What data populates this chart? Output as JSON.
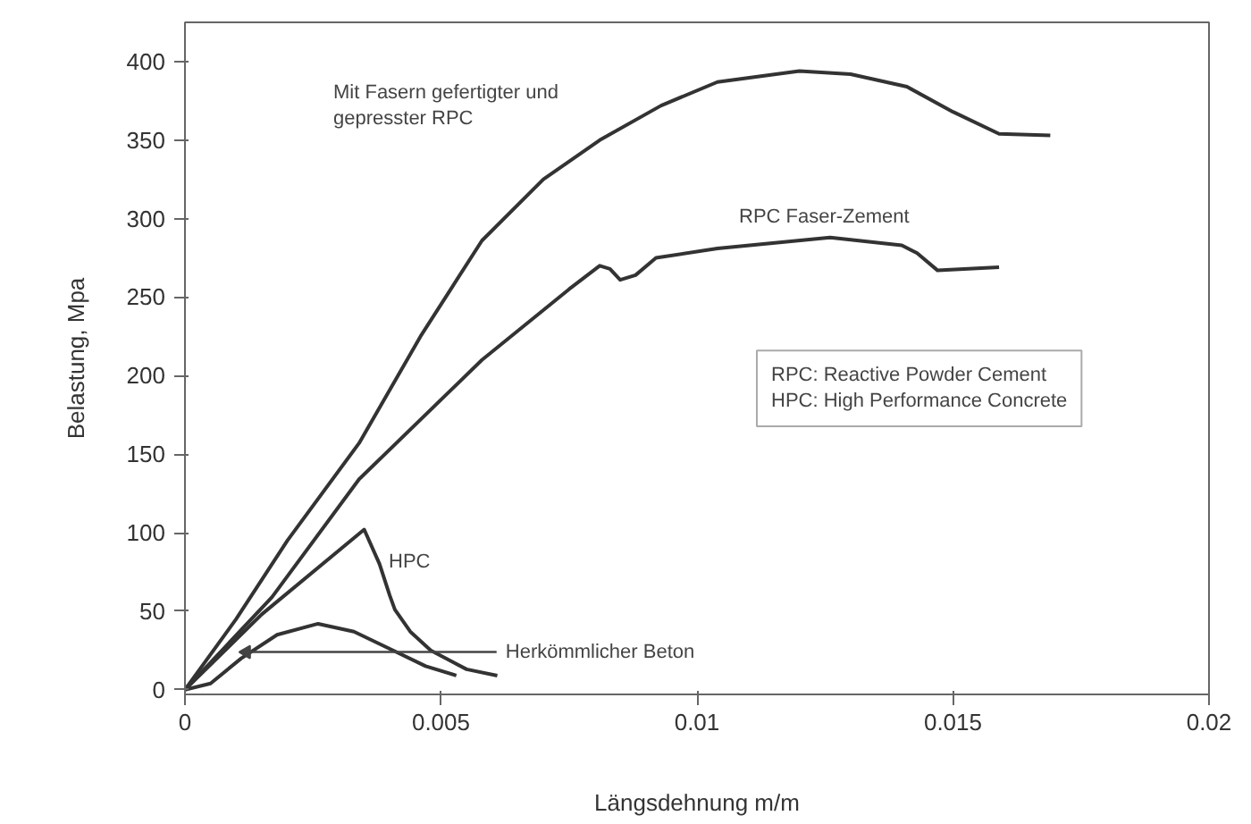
{
  "chart_data": {
    "type": "line",
    "xlabel": "Längsdehnung m/m",
    "ylabel": "Belastung, Mpa",
    "xlim": [
      0,
      0.02
    ],
    "ylim": [
      -3,
      425
    ],
    "xticks": [
      0,
      0.005,
      0.01,
      0.015,
      0.02
    ],
    "yticks": [
      0,
      50,
      100,
      150,
      200,
      250,
      300,
      350,
      400
    ],
    "grid": false,
    "series": [
      {
        "color": "#333333",
        "x": [
          0,
          0.001,
          0.002,
          0.0034,
          0.0046,
          0.0058,
          0.007,
          0.0081,
          0.0093,
          0.0104,
          0.012,
          0.013,
          0.0141,
          0.015,
          0.0159,
          0.0169
        ],
        "values": [
          0,
          45,
          95,
          157,
          225,
          286,
          325,
          350,
          372,
          387,
          394,
          392,
          384,
          368,
          354,
          353
        ]
      },
      {
        "color": "#333333",
        "x": [
          0,
          0.0017,
          0.0034,
          0.0058,
          0.0075,
          0.0081,
          0.0083,
          0.0085,
          0.0088,
          0.0092,
          0.0104,
          0.0126,
          0.014,
          0.0143,
          0.0147,
          0.0159
        ],
        "values": [
          0,
          59,
          134,
          210,
          255,
          270,
          268,
          261,
          264,
          275,
          281,
          288,
          283,
          278,
          267,
          269
        ]
      },
      {
        "color": "#333333",
        "x": [
          0,
          0.0015,
          0.0035,
          0.0038,
          0.004,
          0.0041,
          0.0044,
          0.0048,
          0.0055,
          0.0061
        ],
        "values": [
          0,
          48,
          102,
          80,
          60,
          51,
          37,
          25,
          13,
          9
        ]
      },
      {
        "color": "#333333",
        "x": [
          0,
          0.0005,
          0.0011,
          0.0018,
          0.0026,
          0.0033,
          0.004,
          0.0047,
          0.0053
        ],
        "values": [
          0,
          4,
          20,
          35,
          42,
          37,
          26,
          15,
          9
        ]
      }
    ],
    "annotations": [
      "Mit Fasern gefertigter und\ngepresster RPC",
      "RPC Faser-Zement",
      "HPC",
      {
        "text": "Herkömmlicher Beton",
        "x": 0.0012,
        "y": 24
      },
      "RPC: Reactive Powder Cement",
      "HPC: High Performance Concrete"
    ]
  }
}
